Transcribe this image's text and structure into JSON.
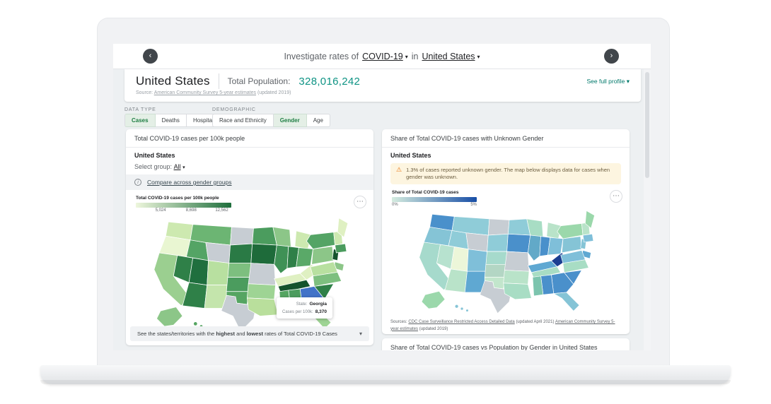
{
  "topbar": {
    "back_icon": "‹",
    "forward_icon": "›",
    "prefix": "Investigate rates of",
    "metric": "COVID-19",
    "conjunction": "in",
    "place": "United States",
    "caret": "▾"
  },
  "header": {
    "title": "United States",
    "population_label": "Total Population:",
    "population_value": "328,016,242",
    "source_prefix": "Source:",
    "source_link": "American Community Survey 5-year estimates",
    "source_suffix": "(updated 2019)",
    "profile_link": "See full profile",
    "profile_caret": "▾"
  },
  "filters": {
    "data_type_label": "DATA TYPE",
    "data_type_options": [
      {
        "label": "Cases",
        "selected": true
      },
      {
        "label": "Deaths",
        "selected": false
      },
      {
        "label": "Hospitalizations",
        "selected": false
      }
    ],
    "demographic_label": "DEMOGRAPHIC",
    "demographic_options": [
      {
        "label": "Race and Ethnicity",
        "selected": false
      },
      {
        "label": "Gender",
        "selected": true
      },
      {
        "label": "Age",
        "selected": false
      }
    ]
  },
  "left_card": {
    "title": "Total COVID-19 cases per 100k people",
    "region": "United States",
    "select_label": "Select group:",
    "select_value": "All",
    "select_caret": "▾",
    "compare_link": "Compare across gender groups",
    "info_icon": "i",
    "legend_title": "Total COVID-19 cases per 100k people",
    "legend_ticks": [
      "5,024",
      "8,698",
      "12,562"
    ],
    "more_icon": "⋯",
    "tooltip": {
      "label1": "State:",
      "value1": "Georgia",
      "label2": "Cases per 100k:",
      "value2": "8,370"
    },
    "accordion": {
      "pre": "See the states/territories with the ",
      "bold1": "highest",
      "mid": " and ",
      "bold2": "lowest",
      "post": " rates of Total COVID-19 Cases",
      "caret": "▾"
    }
  },
  "right_card": {
    "title": "Share of Total COVID-19 cases with Unknown Gender",
    "region": "United States",
    "warning_icon": "⚠",
    "warning_text": "1.3% of cases reported unknown gender. The map below displays data for cases when gender was unknown.",
    "legend_title": "Share of Total COVID-19 cases",
    "legend_min": "0%",
    "legend_max": "5%",
    "more_icon": "⋯",
    "sources_prefix": "Sources:",
    "source_link1": "CDC Case Surveillance Restricted Access Detailed Data",
    "source_mid": "(updated April 2021)",
    "source_link2": "American Community Survey 5-year estimates",
    "source_suffix": "(updated 2019)"
  },
  "next_card": {
    "title": "Share of Total COVID-19 cases vs Population by Gender in United States"
  },
  "colors": {
    "accent_teal": "#0e9384",
    "link_teal": "#00796b",
    "selected_green": "#1e7e43",
    "selected_bg": "#e4efe6",
    "warning_bg": "#fdf5e0",
    "warning_icon": "#e8710a",
    "highlight_blue": "#4273c8",
    "no_data_gray": "#c7cdd3"
  },
  "maps": {
    "left": {
      "gradient": [
        "#eef7dd",
        "#1e6e3c"
      ],
      "fills": {
        "WA": "#cde9b0",
        "OR": "#e9f6d2",
        "CA": "#9bcf90",
        "NV": "#2f8048",
        "ID": "#54a465",
        "MT": "#6cb573",
        "WY": "#c7cdd3",
        "UT": "#1f6f3e",
        "CO": "#b8e0a0",
        "AZ": "#2f8048",
        "NM": "#c4e5ac",
        "ND": "#c7cdd3",
        "SD": "#2a7a45",
        "NE": "#7dbf7f",
        "KS": "#4b9c5e",
        "OK": "#55a562",
        "TX": "#c7cdd3",
        "MN": "#4b9c5e",
        "IA": "#1e6b3a",
        "MO": "#c7cdd3",
        "AR": "#9ed494",
        "LA": "#b9df9c",
        "WI": "#8cc688",
        "IL": "#3f9156",
        "MI": "#cde9b0",
        "IN": "#2f8048",
        "OH": "#5aa968",
        "KY": "#dff0c2",
        "TN": "#14532d",
        "MS": "#55a562",
        "AL": "#4b9c5e",
        "GA": "#4273c8",
        "SC": "#2f8048",
        "NC": "#7dbf7f",
        "VA": "#b8e0a0",
        "WV": "#dff0c2",
        "PA": "#8cc688",
        "NY": "#54a465",
        "NJ": "#14532d",
        "MD": "#8cc688",
        "MA": "#4b9c5e",
        "VTNH": "#cde9b0",
        "ME": "#dff0c2",
        "FL": "#9ed494",
        "AK": "#8cc688",
        "HI": "#55a562"
      }
    },
    "right": {
      "gradient": [
        "#d5ecdf",
        "#174ea6"
      ],
      "fills": {
        "WA": "#4a90cb",
        "OR": "#85c4d6",
        "CA": "#a6dacc",
        "NV": "#b7e2cf",
        "ID": "#8fccd8",
        "MT": "#8fccd8",
        "WY": "#c7cdd3",
        "UT": "#ecf6d9",
        "CO": "#7fbfd9",
        "AZ": "#b9e3c9",
        "NM": "#5fa8d2",
        "ND": "#c7cdd3",
        "SD": "#8fccd8",
        "NE": "#a6dacc",
        "KS": "#b3d6c4",
        "OK": "#c2e6cc",
        "TX": "#c7cdd3",
        "MN": "#8fccd8",
        "IA": "#4a90cb",
        "MO": "#c7cdd3",
        "AR": "#b9e3c9",
        "LA": "#a8ddc4",
        "WI": "#a8ddc4",
        "IL": "#62a9c8",
        "MI": "#b9e3c9",
        "IN": "#4a90cb",
        "OH": "#7fbfd9",
        "KY": "#5fa8d2",
        "TN": "#a8ddc4",
        "MS": "#7cc4ae",
        "AL": "#4a90cb",
        "GA": "#4a90cb",
        "SC": "#4a90cb",
        "NC": "#a8ddc4",
        "VA": "#7fbfd9",
        "WV": "#1b3e91",
        "PA": "#85c4d6",
        "NY": "#9bd8ab",
        "NJ": "#85c4d6",
        "MD": "#5fa8d2",
        "MA": "#7fbfd9",
        "VTNH": "#b9e3c9",
        "ME": "#9bd8ab",
        "FL": "#85c4d6",
        "AK": "#9bd8ab",
        "HI": "#85c4d6"
      }
    }
  }
}
